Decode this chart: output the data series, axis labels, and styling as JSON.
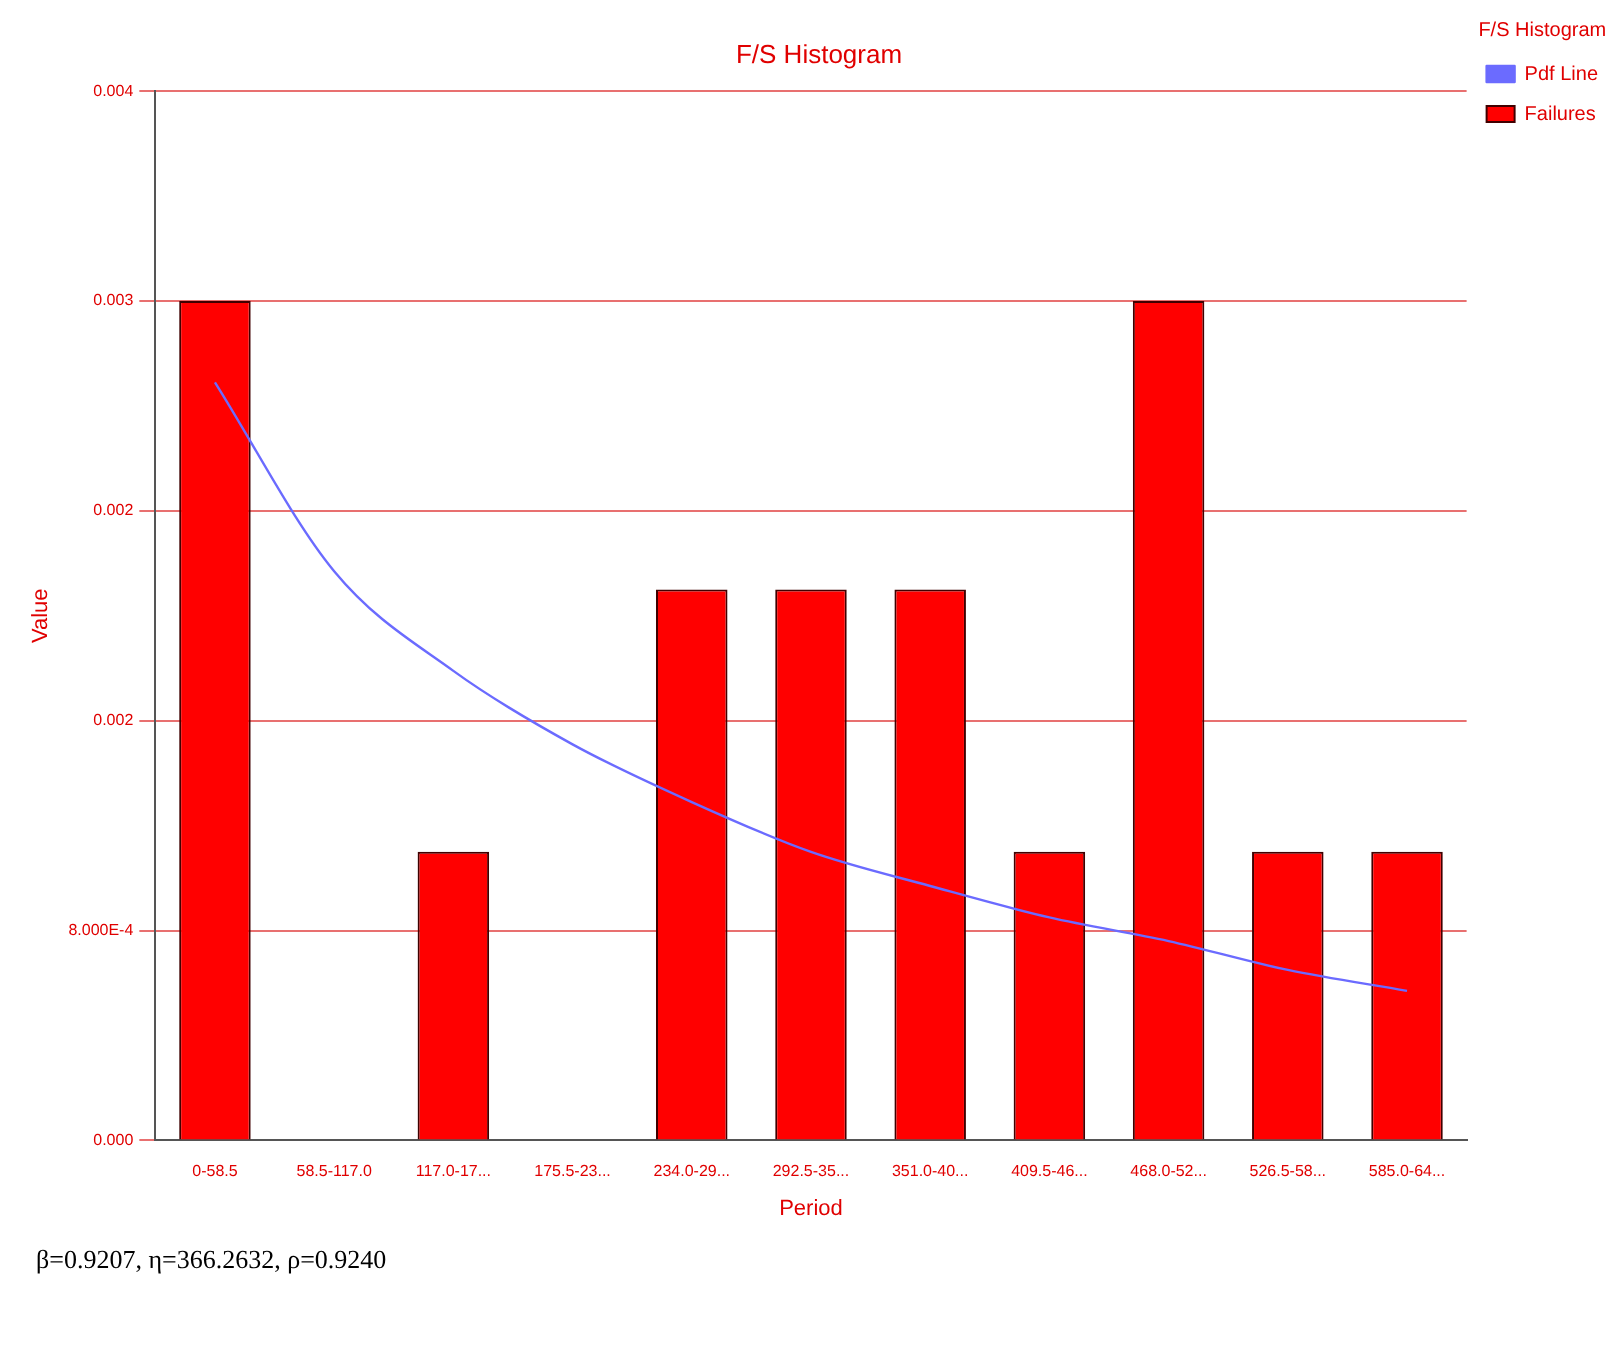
{
  "chart_data": {
    "type": "bar",
    "title": "F/S Histogram",
    "xlabel": "Period",
    "ylabel": "Value",
    "legend_title": "F/S Histogram",
    "categories": [
      "0-58.5",
      "58.5-117.0",
      "117.0-17...",
      "175.5-23...",
      "234.0-29...",
      "292.5-35...",
      "351.0-40...",
      "409.5-46...",
      "468.0-52...",
      "526.5-58...",
      "585.0-64..."
    ],
    "series": [
      {
        "name": "Pdf Line",
        "type": "line",
        "color": "#6b6bff",
        "values": [
          0.00289,
          0.00217,
          0.00179,
          0.00151,
          0.00129,
          0.0011,
          0.00097,
          0.00085,
          0.00076,
          0.00065,
          0.00057
        ]
      },
      {
        "name": "Failures",
        "color": "#ff0000",
        "values": [
          0.0032,
          0,
          0.0011,
          0,
          0.0021,
          0.0021,
          0.0021,
          0.0011,
          0.0032,
          0.0011,
          0.0011
        ]
      }
    ],
    "ylim": [
      0,
      0.004
    ],
    "yticks": [
      {
        "value": 0,
        "label": "0.000"
      },
      {
        "value": 0.0008,
        "label": "8.000E-4"
      },
      {
        "value": 0.0016,
        "label": "0.002"
      },
      {
        "value": 0.0024,
        "label": "0.002"
      },
      {
        "value": 0.0032,
        "label": "0.003"
      },
      {
        "value": 0.004,
        "label": "0.004"
      }
    ],
    "grid": "y",
    "legend": "top right",
    "marker": "none",
    "annotations": [
      "β=0.9207, η=366.2632, ρ=0.9240"
    ]
  }
}
